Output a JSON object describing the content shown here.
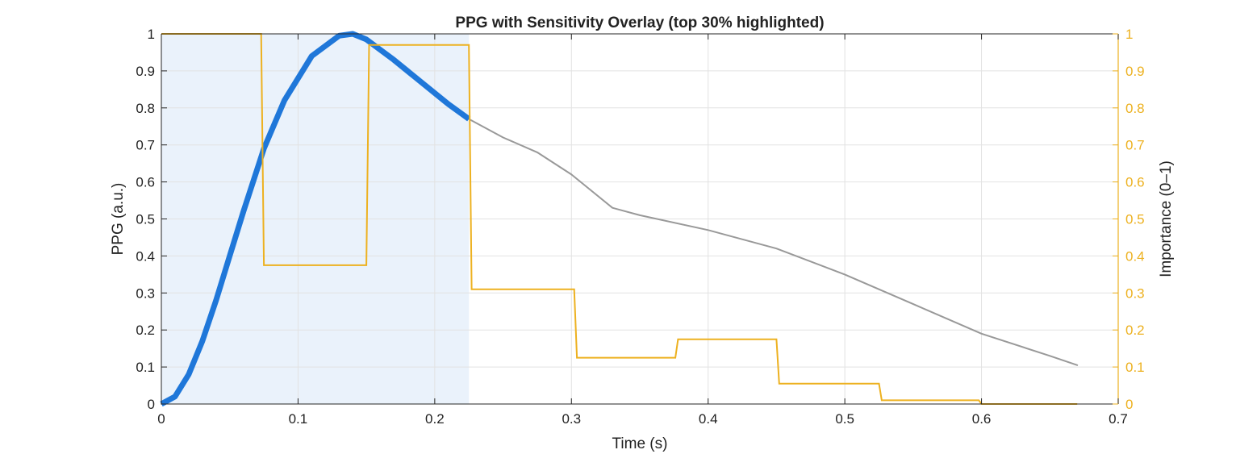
{
  "chart_data": {
    "type": "line",
    "title": "PPG with Sensitivity Overlay (top 30% highlighted)",
    "xlabel": "Time (s)",
    "ylabel_left": "PPG (a.u.)",
    "ylabel_right": "Importance (0–1)",
    "xlim": [
      0,
      0.7
    ],
    "ylim_left": [
      0,
      1
    ],
    "ylim_right": [
      0,
      1
    ],
    "x_ticks": [
      "0",
      "0.1",
      "0.2",
      "0.3",
      "0.4",
      "0.5",
      "0.6",
      "0.7"
    ],
    "y_ticks_left": [
      "0",
      "0.1",
      "0.2",
      "0.3",
      "0.4",
      "0.5",
      "0.6",
      "0.7",
      "0.8",
      "0.9",
      "1"
    ],
    "y_ticks_right": [
      "0",
      "0.1",
      "0.2",
      "0.3",
      "0.4",
      "0.5",
      "0.6",
      "0.7",
      "0.8",
      "0.9",
      "1"
    ],
    "grid": true,
    "highlight_region": {
      "x_start": 0,
      "x_end": 0.225
    },
    "colors": {
      "ppg": "#999999",
      "ppg_highlight": "#1f77d9",
      "importance": "#edb120",
      "highlight_fill": "#eaf2fb",
      "axis": "#262626",
      "grid": "#e2e2e2"
    },
    "series": [
      {
        "role": "ppg",
        "axis": "left",
        "x": [
          0,
          0.01,
          0.02,
          0.03,
          0.04,
          0.05,
          0.06,
          0.075,
          0.09,
          0.11,
          0.13,
          0.14,
          0.15,
          0.17,
          0.19,
          0.21,
          0.225,
          0.25,
          0.275,
          0.3,
          0.33,
          0.35,
          0.4,
          0.45,
          0.5,
          0.55,
          0.6,
          0.65,
          0.67
        ],
        "y": [
          0,
          0.02,
          0.08,
          0.17,
          0.28,
          0.4,
          0.52,
          0.69,
          0.82,
          0.94,
          0.995,
          1.0,
          0.985,
          0.93,
          0.87,
          0.81,
          0.77,
          0.72,
          0.68,
          0.62,
          0.53,
          0.51,
          0.47,
          0.42,
          0.35,
          0.27,
          0.19,
          0.13,
          0.105
        ]
      },
      {
        "role": "importance",
        "axis": "right",
        "x": [
          0,
          0.073,
          0.075,
          0.15,
          0.152,
          0.225,
          0.227,
          0.302,
          0.304,
          0.376,
          0.378,
          0.45,
          0.452,
          0.525,
          0.527,
          0.598,
          0.6,
          0.67
        ],
        "y": [
          1.0,
          1.0,
          0.375,
          0.375,
          0.97,
          0.97,
          0.31,
          0.31,
          0.125,
          0.125,
          0.175,
          0.175,
          0.055,
          0.055,
          0.01,
          0.01,
          0.0,
          0.0
        ]
      }
    ]
  }
}
